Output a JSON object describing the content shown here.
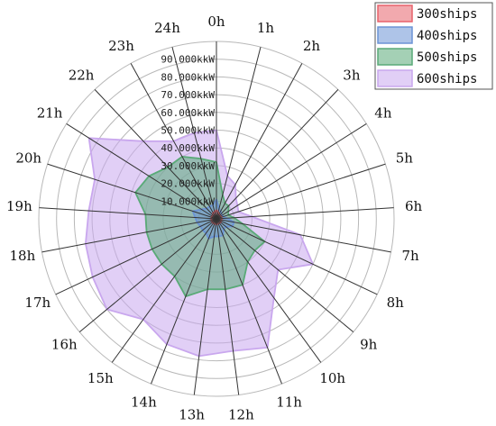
{
  "chart_data": {
    "type": "radar",
    "axes": [
      "0h",
      "1h",
      "2h",
      "3h",
      "4h",
      "5h",
      "6h",
      "7h",
      "8h",
      "9h",
      "10h",
      "11h",
      "12h",
      "13h",
      "14h",
      "15h",
      "16h",
      "17h",
      "18h",
      "19h",
      "20h",
      "21h",
      "22h",
      "23h",
      "24h"
    ],
    "radial_ticks": [
      10,
      20,
      30,
      40,
      50,
      60,
      70,
      80,
      90
    ],
    "radial_tick_labels": [
      "10.000kkW",
      "20.000kkW",
      "30.000kkW",
      "40.000kkW",
      "50.000kkW",
      "60.000kkW",
      "70.000kkW",
      "80.000kkW",
      "90.000kkW"
    ],
    "rmax": 100,
    "grid": true,
    "legend_position": "top-right",
    "series": [
      {
        "name": "300ships",
        "color": "#e8626b",
        "values": [
          5,
          4,
          3,
          3,
          3,
          3,
          3,
          3,
          3,
          3,
          3,
          3,
          3,
          3,
          3,
          3,
          3,
          3,
          3,
          3,
          3,
          3,
          3,
          4,
          4
        ]
      },
      {
        "name": "400ships",
        "color": "#6b93d6",
        "values": [
          11,
          6,
          5,
          4,
          4,
          4,
          6,
          10,
          10,
          7,
          7,
          10,
          10,
          10,
          12,
          10,
          10,
          10,
          11,
          12,
          14,
          10,
          8,
          8,
          8
        ]
      },
      {
        "name": "500ships",
        "color": "#5aaa78",
        "values": [
          32,
          14,
          10,
          10,
          8,
          7,
          10,
          15,
          30,
          28,
          30,
          40,
          40,
          40,
          47,
          40,
          40,
          40,
          40,
          40,
          48,
          45,
          40,
          40,
          35
        ]
      },
      {
        "name": "600ships",
        "color": "#c9a7ee",
        "values": [
          50,
          25,
          22,
          16,
          14,
          13,
          20,
          48,
          60,
          45,
          55,
          78,
          75,
          78,
          76,
          70,
          80,
          77,
          75,
          72,
          72,
          85,
          60,
          50,
          50
        ]
      }
    ]
  }
}
